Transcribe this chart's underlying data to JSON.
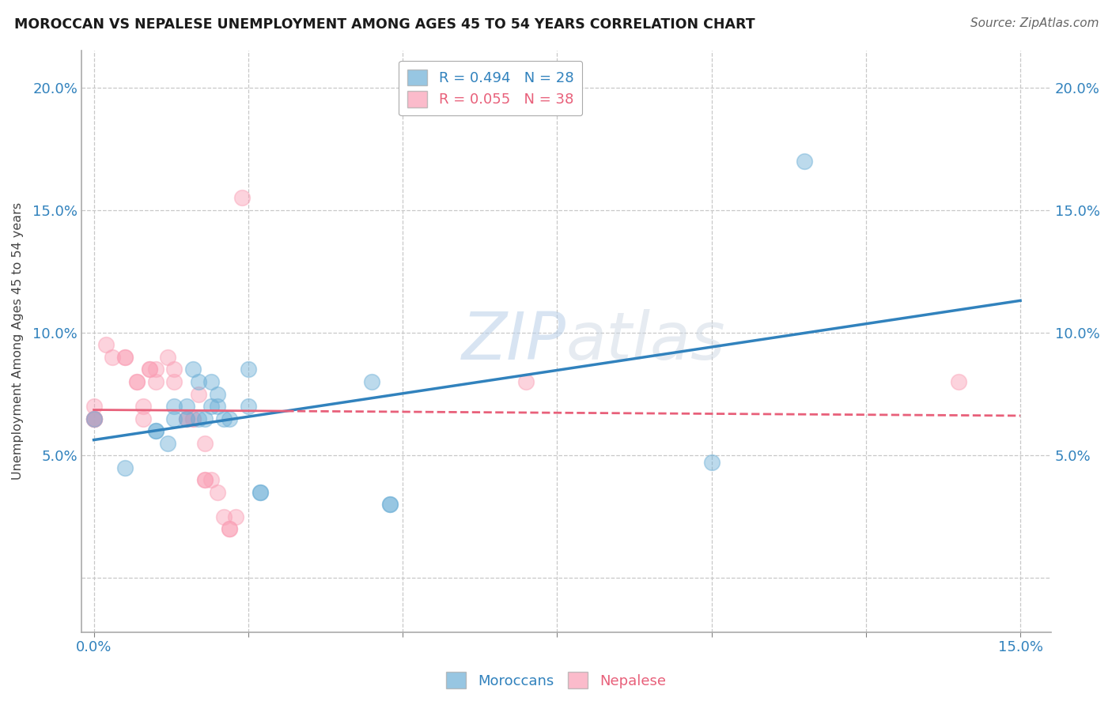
{
  "title": "MOROCCAN VS NEPALESE UNEMPLOYMENT AMONG AGES 45 TO 54 YEARS CORRELATION CHART",
  "source": "Source: ZipAtlas.com",
  "ylabel": "Unemployment Among Ages 45 to 54 years",
  "xlim": [
    -0.002,
    0.155
  ],
  "ylim": [
    -0.022,
    0.215
  ],
  "xticks": [
    0.0,
    0.025,
    0.05,
    0.075,
    0.1,
    0.125,
    0.15
  ],
  "yticks": [
    0.0,
    0.05,
    0.1,
    0.15,
    0.2
  ],
  "moroccan_R": 0.494,
  "moroccan_N": 28,
  "nepalese_R": 0.055,
  "nepalese_N": 38,
  "moroccan_color": "#6baed6",
  "nepalese_color": "#fa9fb5",
  "moroccan_line_color": "#3182bd",
  "nepalese_line_color": "#e8607a",
  "moroccan_x": [
    0.0,
    0.005,
    0.01,
    0.01,
    0.012,
    0.013,
    0.013,
    0.015,
    0.015,
    0.016,
    0.017,
    0.017,
    0.018,
    0.019,
    0.019,
    0.02,
    0.02,
    0.021,
    0.022,
    0.025,
    0.025,
    0.027,
    0.027,
    0.045,
    0.048,
    0.048,
    0.1,
    0.115
  ],
  "moroccan_y": [
    0.065,
    0.045,
    0.06,
    0.06,
    0.055,
    0.065,
    0.07,
    0.065,
    0.07,
    0.085,
    0.08,
    0.065,
    0.065,
    0.08,
    0.07,
    0.07,
    0.075,
    0.065,
    0.065,
    0.085,
    0.07,
    0.035,
    0.035,
    0.08,
    0.03,
    0.03,
    0.047,
    0.17
  ],
  "nepalese_x": [
    0.0,
    0.0,
    0.0,
    0.0,
    0.0,
    0.0,
    0.002,
    0.003,
    0.005,
    0.005,
    0.007,
    0.007,
    0.008,
    0.008,
    0.009,
    0.009,
    0.01,
    0.01,
    0.012,
    0.013,
    0.013,
    0.015,
    0.015,
    0.016,
    0.016,
    0.017,
    0.018,
    0.018,
    0.018,
    0.019,
    0.02,
    0.021,
    0.022,
    0.022,
    0.023,
    0.024,
    0.07,
    0.14
  ],
  "nepalese_y": [
    0.065,
    0.065,
    0.07,
    0.065,
    0.065,
    0.065,
    0.095,
    0.09,
    0.09,
    0.09,
    0.08,
    0.08,
    0.065,
    0.07,
    0.085,
    0.085,
    0.08,
    0.085,
    0.09,
    0.08,
    0.085,
    0.065,
    0.065,
    0.065,
    0.065,
    0.075,
    0.055,
    0.04,
    0.04,
    0.04,
    0.035,
    0.025,
    0.02,
    0.02,
    0.025,
    0.155,
    0.08,
    0.08
  ],
  "background_color": "#ffffff",
  "grid_color": "#c8c8c8",
  "title_color": "#1a1a1a",
  "source_color": "#666666",
  "tick_color": "#3182bd",
  "ylabel_color": "#444444"
}
